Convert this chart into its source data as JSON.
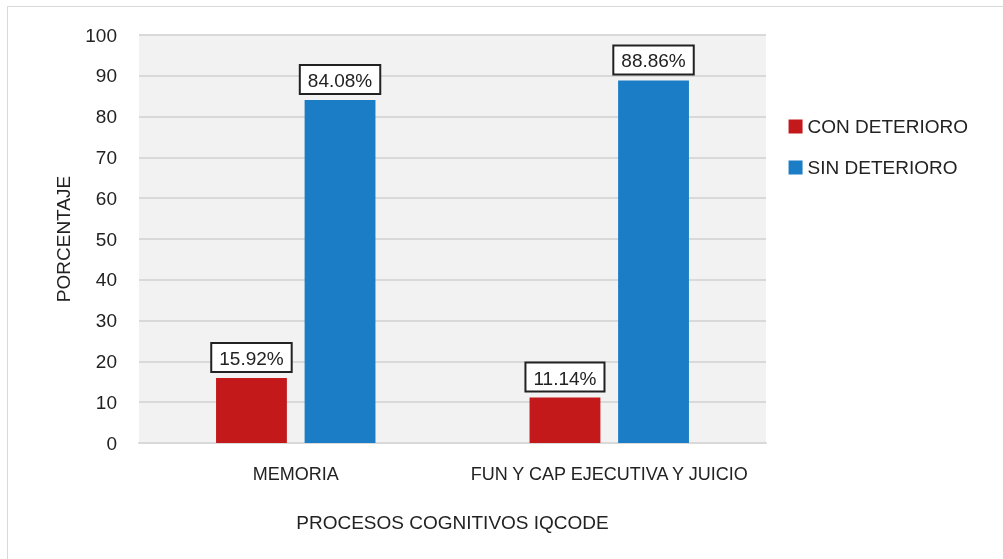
{
  "chart_data": {
    "type": "bar",
    "xlabel": "PROCESOS COGNITIVOS IQCODE",
    "ylabel": "PORCENTAJE",
    "categories": [
      "MEMORIA",
      "FUN Y CAP EJECUTIVA Y JUICIO"
    ],
    "series": [
      {
        "name": "CON DETERIORO",
        "color": "#c4191b",
        "values": [
          15.92,
          11.14
        ],
        "value_labels": [
          "15.92%",
          "11.14%"
        ]
      },
      {
        "name": "SIN DETERIORO",
        "color": "#1b7dc5",
        "values": [
          84.08,
          88.86
        ],
        "value_labels": [
          "84.08%",
          "88.86%"
        ]
      }
    ],
    "ylim": [
      0,
      100
    ],
    "yticks": [
      0,
      10,
      20,
      30,
      40,
      50,
      60,
      70,
      80,
      90,
      100
    ],
    "grid": "y",
    "legend": "right"
  }
}
